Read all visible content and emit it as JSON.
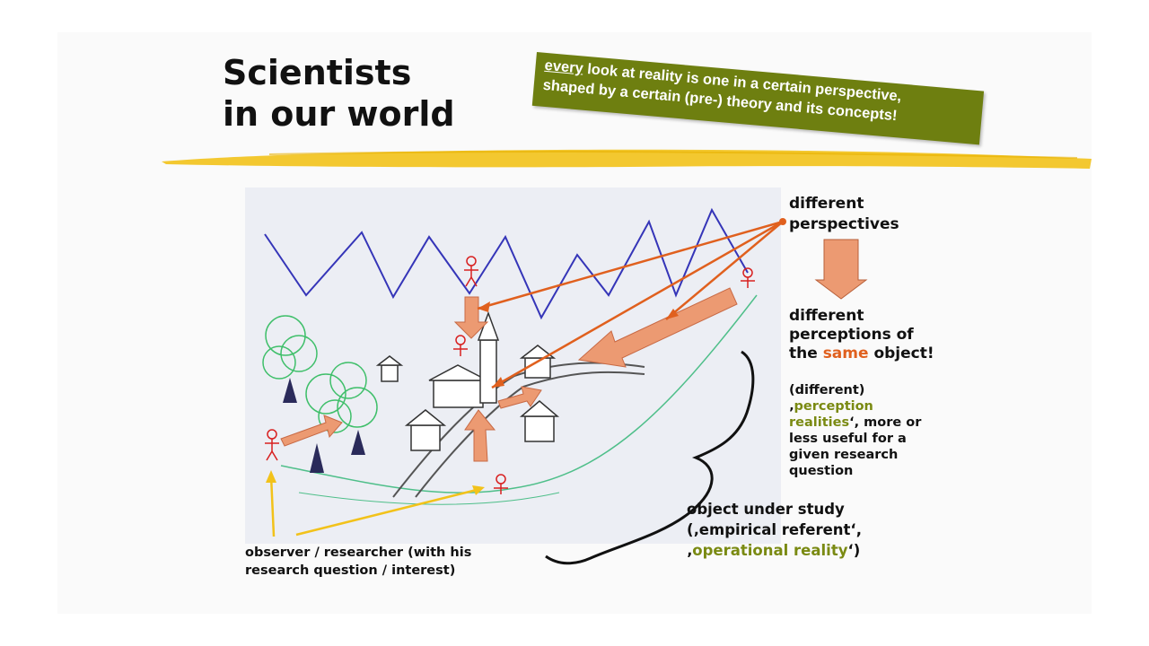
{
  "title": {
    "line1": "Scientists",
    "line2": "in our world"
  },
  "callout": {
    "word_underlined": "every",
    "rest_line1": " look at reality is one in a certain perspective,",
    "line2": "shaped by a certain (pre-) theory and its concepts!"
  },
  "labels": {
    "different_perspectives_1": "different",
    "different_perspectives_2": "perspectives",
    "perceptions_1": "different",
    "perceptions_2": "perceptions of",
    "perceptions_3a": "the ",
    "perceptions_same": "same",
    "perceptions_3b": " object!",
    "realities_1": "(different)",
    "realities_2a": "‚",
    "realities_2b": "perception",
    "realities_3a": "realities",
    "realities_3b": "‘, more or",
    "realities_4": "less useful for a",
    "realities_5": "given research",
    "realities_6": "question",
    "object_1": "object under study",
    "object_2": "(‚empirical referent‘,",
    "object_3a": "‚",
    "object_3b": "operational reality",
    "object_3c": "‘)",
    "observer_1": "observer / researcher (with his",
    "observer_2": "research question / interest)"
  },
  "colors": {
    "accent_orange": "#e0601e",
    "olive": "#6e7f10",
    "highlight_yellow": "#f2c21a",
    "arrow_fill": "#ec9a72"
  }
}
